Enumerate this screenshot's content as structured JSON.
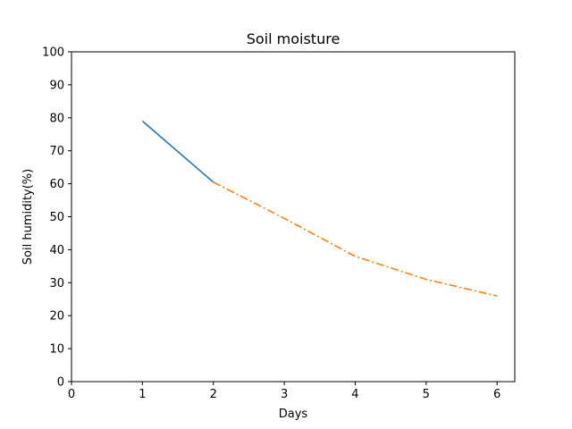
{
  "chart_data": {
    "type": "line",
    "title": "Soil moisture",
    "xlabel": "Days",
    "ylabel": "Soil humidity(%)",
    "xlim": [
      0,
      6.25
    ],
    "ylim": [
      0,
      100
    ],
    "xticks": [
      0,
      1,
      2,
      3,
      4,
      5,
      6
    ],
    "yticks": [
      0,
      10,
      20,
      30,
      40,
      50,
      60,
      70,
      80,
      90,
      100
    ],
    "grid": false,
    "legend": "none",
    "series": [
      {
        "color": "#1f77b4",
        "linestyle": "solid",
        "x": [
          1,
          2
        ],
        "y": [
          79,
          60.5
        ]
      },
      {
        "color": "#ff7f0e",
        "linestyle": "dashdot",
        "x": [
          2,
          3,
          4,
          5,
          6
        ],
        "y": [
          60.5,
          49.5,
          38,
          31,
          26
        ]
      }
    ]
  }
}
